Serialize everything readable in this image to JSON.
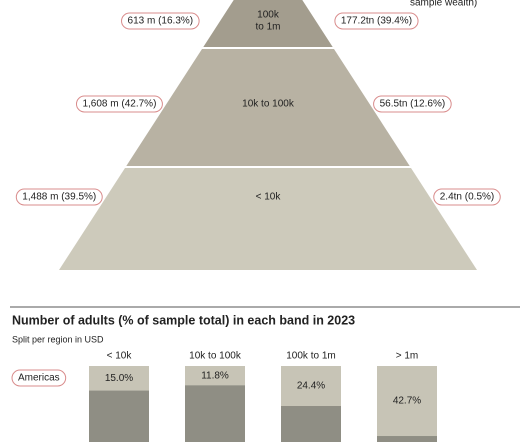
{
  "header_fragment": "sample wealth)",
  "pyramid": {
    "tiers": [
      {
        "label": [
          "100k",
          "to 1m"
        ],
        "adults": "613 m (16.3%)",
        "wealth": "177.2tn (39.4%)"
      },
      {
        "label": [
          "10k to 100k"
        ],
        "adults": "1,608 m (42.7%)",
        "wealth": "56.5tn (12.6%)"
      },
      {
        "label": [
          "< 10k"
        ],
        "adults": "1,488 m (39.5%)",
        "wealth": "2.4tn (0.5%)"
      }
    ]
  },
  "bands_chart": {
    "type": "stacked-bar",
    "title": "Number of adults (% of sample total) in each band in 2023",
    "subtitle": "Split per region in USD",
    "categories": [
      "< 10k",
      "10k to 100k",
      "100k to 1m",
      "> 1m"
    ],
    "series": [
      {
        "name": "Americas",
        "color": "#c7c4b6",
        "values": [
          15.0,
          11.8,
          24.4,
          42.7
        ],
        "value_labels": [
          "15.0%",
          "11.8%",
          "24.4%",
          "42.7%"
        ]
      }
    ]
  }
}
